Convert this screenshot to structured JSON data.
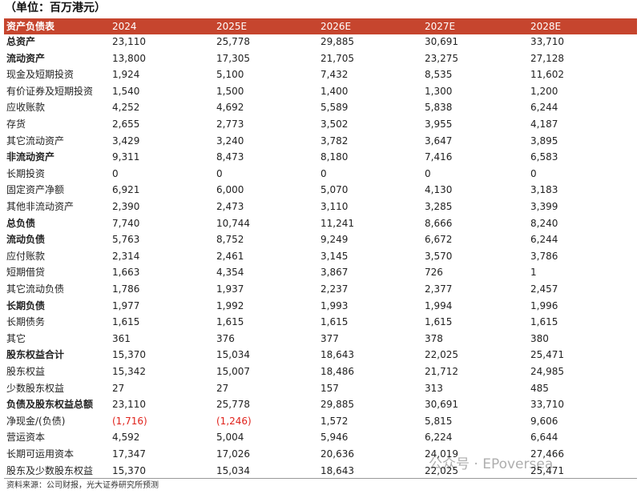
{
  "title": "（单位：百万港元）",
  "table": {
    "header": [
      "资产负债表",
      "2024",
      "2025E",
      "2026E",
      "2027E",
      "2028E"
    ],
    "rows": [
      [
        "总资产",
        "23,110",
        "25,778",
        "29,885",
        "30,691",
        "33,710"
      ],
      [
        "流动资产",
        "13,800",
        "17,305",
        "21,705",
        "23,275",
        "27,128"
      ],
      [
        "现金及短期投资",
        "1,924",
        "5,100",
        "7,432",
        "8,535",
        "11,602"
      ],
      [
        "有价证券及短期投资",
        "1,540",
        "1,500",
        "1,400",
        "1,300",
        "1,200"
      ],
      [
        "应收账款",
        "4,252",
        "4,692",
        "5,589",
        "5,838",
        "6,244"
      ],
      [
        "存货",
        "2,655",
        "2,773",
        "3,502",
        "3,955",
        "4,187"
      ],
      [
        "其它流动资产",
        "3,429",
        "3,240",
        "3,782",
        "3,647",
        "3,895"
      ],
      [
        "非流动资产",
        "9,311",
        "8,473",
        "8,180",
        "7,416",
        "6,583"
      ],
      [
        "长期投资",
        "0",
        "0",
        "0",
        "0",
        "0"
      ],
      [
        "固定资产净额",
        "6,921",
        "6,000",
        "5,070",
        "4,130",
        "3,183"
      ],
      [
        "其他非流动资产",
        "2,390",
        "2,473",
        "3,110",
        "3,285",
        "3,399"
      ],
      [
        "总负债",
        "7,740",
        "10,744",
        "11,241",
        "8,666",
        "8,240"
      ],
      [
        "流动负债",
        "5,763",
        "8,752",
        "9,249",
        "6,672",
        "6,244"
      ],
      [
        "应付账款",
        "2,314",
        "2,461",
        "3,145",
        "3,570",
        "3,786"
      ],
      [
        "短期借贷",
        "1,663",
        "4,354",
        "3,867",
        "726",
        "1"
      ],
      [
        "其它流动负债",
        "1,786",
        "1,937",
        "2,237",
        "2,377",
        "2,457"
      ],
      [
        "长期负债",
        "1,977",
        "1,992",
        "1,993",
        "1,994",
        "1,996"
      ],
      [
        "长期债务",
        "1,615",
        "1,615",
        "1,615",
        "1,615",
        "1,615"
      ],
      [
        "其它",
        "361",
        "376",
        "377",
        "378",
        "380"
      ],
      [
        "股东权益合计",
        "15,370",
        "15,034",
        "18,643",
        "22,025",
        "25,471"
      ],
      [
        "股东权益",
        "15,342",
        "15,007",
        "18,486",
        "21,712",
        "24,985"
      ],
      [
        "少数股东权益",
        "27",
        "27",
        "157",
        "313",
        "485"
      ],
      [
        "负债及股东权益总额",
        "23,110",
        "25,778",
        "29,885",
        "30,691",
        "33,710"
      ],
      [
        "净现金/(负债)",
        "(1,716)",
        "(1,246)",
        "1,572",
        "5,815",
        "9,606"
      ],
      [
        "营运资本",
        "4,592",
        "5,004",
        "5,946",
        "6,224",
        "6,644"
      ],
      [
        "长期可运用资本",
        "17,347",
        "17,026",
        "20,636",
        "24,019",
        "27,466"
      ],
      [
        "股东及少数股东权益",
        "15,370",
        "15,034",
        "18,643",
        "22,025",
        "25,471"
      ]
    ]
  },
  "source": "资料来源：公司财报，光大证券研究所预测",
  "watermark": "公众号 · EPoversea"
}
